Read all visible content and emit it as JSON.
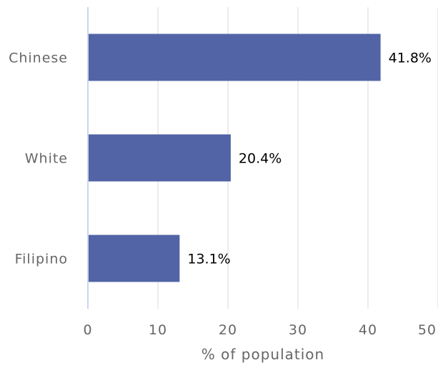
{
  "chart_data": {
    "type": "bar",
    "orientation": "horizontal",
    "categories": [
      "Chinese",
      "White",
      "Filipino"
    ],
    "values": [
      41.8,
      20.4,
      13.1
    ],
    "data_labels": [
      "41.8%",
      "20.4%",
      "13.1%"
    ],
    "xlabel": "% of population",
    "xlim": [
      0,
      50
    ],
    "x_ticks": [
      "0",
      "10",
      "20",
      "30",
      "40",
      "50"
    ],
    "grid": true,
    "legend": "none",
    "bar_color": "#5264a6",
    "grid_color": "#e6e6e6",
    "axis_color": "#ccd6eb"
  }
}
